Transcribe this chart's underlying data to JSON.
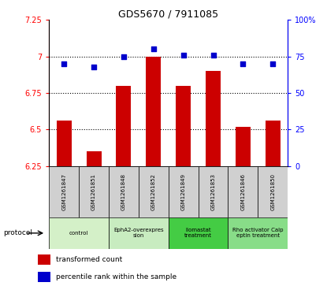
{
  "title": "GDS5670 / 7911085",
  "samples": [
    "GSM1261847",
    "GSM1261851",
    "GSM1261848",
    "GSM1261852",
    "GSM1261849",
    "GSM1261853",
    "GSM1261846",
    "GSM1261850"
  ],
  "bar_values": [
    6.56,
    6.35,
    6.8,
    7.0,
    6.8,
    6.9,
    6.52,
    6.56
  ],
  "dot_values": [
    70,
    68,
    75,
    80,
    76,
    76,
    70,
    70
  ],
  "ylim_left": [
    6.25,
    7.25
  ],
  "ylim_right": [
    0,
    100
  ],
  "yticks_left": [
    6.25,
    6.5,
    6.75,
    7.0,
    7.25
  ],
  "ytick_labels_left": [
    "6.25",
    "6.5",
    "6.75",
    "7",
    "7.25"
  ],
  "yticks_right": [
    0,
    25,
    50,
    75,
    100
  ],
  "ytick_labels_right": [
    "0",
    "25",
    "50",
    "75",
    "100%"
  ],
  "bar_color": "#cc0000",
  "dot_color": "#0000cc",
  "bar_base": 6.25,
  "protocols": [
    {
      "label": "control",
      "start": 0,
      "end": 2,
      "color": "#d4f0c8"
    },
    {
      "label": "EphA2-overexpres\nsion",
      "start": 2,
      "end": 4,
      "color": "#c8ecc0"
    },
    {
      "label": "Ilomastat\ntreatment",
      "start": 4,
      "end": 6,
      "color": "#44cc44"
    },
    {
      "label": "Rho activator Calp\neptin treatment",
      "start": 6,
      "end": 8,
      "color": "#88dd88"
    }
  ],
  "protocol_label": "protocol",
  "legend_bar_label": "transformed count",
  "legend_dot_label": "percentile rank within the sample",
  "dotted_yticks": [
    6.5,
    6.75,
    7.0
  ]
}
